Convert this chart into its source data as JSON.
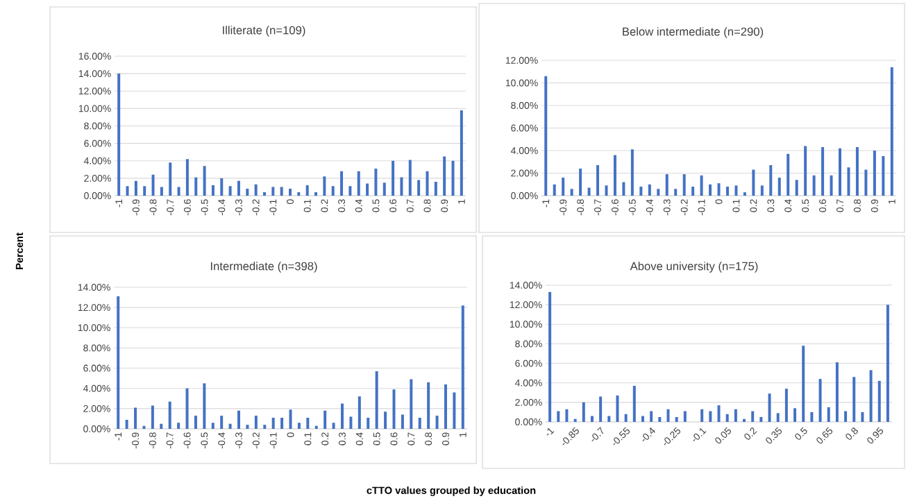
{
  "chart_data": [
    {
      "type": "bar",
      "title": "Illiterate (n=109)",
      "ylabel": "Percent",
      "color": "#4472c4",
      "grid": "y",
      "categories": [
        "-1",
        null,
        "-0.9",
        null,
        "-0.8",
        null,
        "-0.7",
        null,
        "-0.6",
        null,
        "-0.5",
        null,
        "-0.4",
        null,
        "-0.3",
        null,
        "-0.2",
        null,
        "-0.1",
        null,
        "0",
        null,
        "0.1",
        null,
        "0.2",
        null,
        "0.3",
        null,
        "0.4",
        null,
        "0.5",
        null,
        "0.6",
        null,
        "0.7",
        null,
        "0.8",
        null,
        "0.9",
        null,
        "1"
      ],
      "values": [
        14.0,
        1.1,
        1.7,
        1.1,
        2.4,
        1.0,
        3.8,
        1.0,
        4.2,
        2.1,
        3.4,
        1.2,
        2.0,
        1.1,
        1.7,
        0.8,
        1.3,
        0.4,
        1.0,
        1.0,
        0.8,
        0.4,
        1.2,
        0.4,
        2.2,
        1.1,
        2.8,
        1.1,
        2.8,
        1.4,
        3.1,
        1.5,
        4.0,
        2.1,
        4.1,
        1.8,
        2.8,
        1.6,
        4.5,
        4.0,
        9.8
      ],
      "ylim": [
        0,
        16
      ],
      "yticks": [
        {
          "value": 0,
          "label": "0.00%"
        },
        {
          "value": 2,
          "label": "2.00%"
        },
        {
          "value": 4,
          "label": "4.00%"
        },
        {
          "value": 6,
          "label": "6.00%"
        },
        {
          "value": 8,
          "label": "8.00%"
        },
        {
          "value": 10,
          "label": "10.00%"
        },
        {
          "value": 12,
          "label": "12.00%"
        },
        {
          "value": 14,
          "label": "14.00%"
        },
        {
          "value": 16,
          "label": "16.00%"
        }
      ]
    },
    {
      "type": "bar",
      "title": "Below intermediate (n=290)",
      "color": "#4472c4",
      "grid": "y",
      "categories": [
        "-1",
        null,
        "-0.9",
        null,
        "-0.8",
        null,
        "-0.7",
        null,
        "-0.6",
        null,
        "-0.5",
        null,
        "-0.4",
        null,
        "-0.3",
        null,
        "-0.2",
        null,
        "-0.1",
        null,
        "0",
        null,
        "0.1",
        null,
        "0.2",
        null,
        "0.3",
        null,
        "0.4",
        null,
        "0.5",
        null,
        "0.6",
        null,
        "0.7",
        null,
        "0.8",
        null,
        "0.9",
        null,
        "1"
      ],
      "values": [
        10.6,
        1.0,
        1.6,
        0.6,
        2.4,
        0.7,
        2.7,
        0.9,
        3.6,
        1.2,
        4.1,
        0.8,
        1.0,
        0.6,
        1.9,
        0.6,
        1.9,
        0.8,
        1.8,
        1.0,
        1.1,
        0.8,
        0.9,
        0.3,
        2.3,
        0.9,
        2.7,
        1.6,
        3.7,
        1.4,
        4.4,
        1.8,
        4.3,
        1.8,
        4.2,
        2.5,
        4.3,
        2.3,
        4.0,
        3.5,
        11.4
      ],
      "ylim": [
        0,
        12
      ],
      "yticks": [
        {
          "value": 0,
          "label": "0.00%"
        },
        {
          "value": 2,
          "label": "2.00%"
        },
        {
          "value": 4,
          "label": "4.00%"
        },
        {
          "value": 6,
          "label": "6.00%"
        },
        {
          "value": 8,
          "label": "8.00%"
        },
        {
          "value": 10,
          "label": "10.00%"
        },
        {
          "value": 12,
          "label": "12.00%"
        }
      ]
    },
    {
      "type": "bar",
      "title": "Intermediate (n=398)",
      "xlabel": "cTTO values grouped by education",
      "color": "#4472c4",
      "grid": "y",
      "categories": [
        "-1",
        null,
        "-0.9",
        null,
        "-0.8",
        null,
        "-0.7",
        null,
        "-0.6",
        null,
        "-0.5",
        null,
        "-0.4",
        null,
        "-0.3",
        null,
        "-0.2",
        null,
        "-0.1",
        null,
        "0",
        null,
        "0.1",
        null,
        "0.2",
        null,
        "0.3",
        null,
        "0.4",
        null,
        "0.5",
        null,
        "0.6",
        null,
        "0.7",
        null,
        "0.8",
        null,
        "0.9",
        null,
        "1"
      ],
      "values": [
        13.1,
        0.9,
        2.1,
        0.3,
        2.3,
        0.5,
        2.7,
        0.6,
        4.0,
        1.3,
        4.5,
        0.6,
        1.3,
        0.5,
        1.8,
        0.4,
        1.3,
        0.4,
        1.1,
        1.1,
        1.9,
        0.6,
        1.1,
        0.3,
        1.8,
        0.6,
        2.5,
        1.2,
        3.2,
        1.1,
        5.7,
        1.7,
        3.9,
        1.4,
        4.9,
        1.1,
        4.6,
        1.3,
        4.4,
        3.6,
        12.2
      ],
      "ylim": [
        0,
        14
      ],
      "yticks": [
        {
          "value": 0,
          "label": "0.00%"
        },
        {
          "value": 2,
          "label": "2.00%"
        },
        {
          "value": 4,
          "label": "4.00%"
        },
        {
          "value": 6,
          "label": "6.00%"
        },
        {
          "value": 8,
          "label": "8.00%"
        },
        {
          "value": 10,
          "label": "10.00%"
        },
        {
          "value": 12,
          "label": "12.00%"
        },
        {
          "value": 14,
          "label": "14.00%"
        }
      ]
    },
    {
      "type": "bar",
      "title": "Above university (n=175)",
      "color": "#4472c4",
      "grid": "y",
      "categories": [
        "-1",
        null,
        null,
        "-0.85",
        null,
        null,
        "-0.7",
        null,
        null,
        "-0.55",
        null,
        null,
        "-0.4",
        null,
        null,
        "-0.25",
        null,
        null,
        "-0.1",
        null,
        null,
        "0.05",
        null,
        null,
        "0.2",
        null,
        null,
        "0.35",
        null,
        null,
        "0.5",
        null,
        null,
        "0.65",
        null,
        null,
        "0.8",
        null,
        null,
        "0.95",
        null
      ],
      "values": [
        13.3,
        1.1,
        1.3,
        0.3,
        2.0,
        0.6,
        2.6,
        0.6,
        2.7,
        0.8,
        3.7,
        0.6,
        1.1,
        0.5,
        1.3,
        0.5,
        1.1,
        0,
        1.3,
        1.1,
        1.7,
        0.8,
        1.3,
        0.3,
        1.1,
        0.5,
        2.9,
        0.9,
        3.4,
        1.4,
        7.8,
        1.0,
        4.4,
        1.5,
        6.1,
        1.1,
        4.6,
        1.0,
        5.3,
        4.2,
        12.0
      ],
      "ylim": [
        0,
        14
      ],
      "yticks": [
        {
          "value": 0,
          "label": "0.00%"
        },
        {
          "value": 2,
          "label": "2.00%"
        },
        {
          "value": 4,
          "label": "4.00%"
        },
        {
          "value": 6,
          "label": "6.00%"
        },
        {
          "value": 8,
          "label": "8.00%"
        },
        {
          "value": 10,
          "label": "10.00%"
        },
        {
          "value": 12,
          "label": "12.00%"
        },
        {
          "value": 14,
          "label": "14.00%"
        }
      ]
    }
  ]
}
